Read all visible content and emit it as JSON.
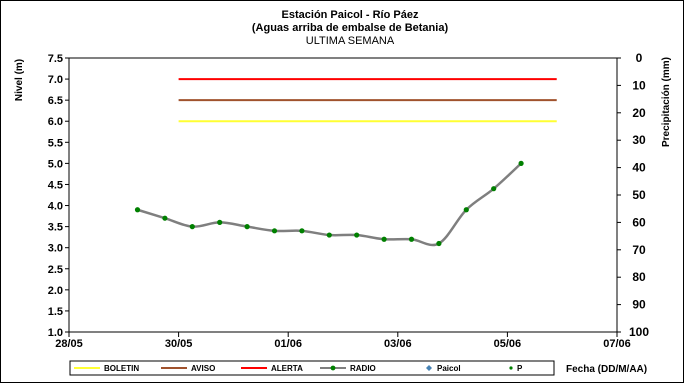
{
  "chart_data": {
    "type": "line",
    "title": "Estación Paicol  - Río Páez",
    "subtitle": "(Aguas arriba de embalse de Betania)",
    "period": "ULTIMA SEMANA",
    "ylabel": "Nivel (m)",
    "y2label": "Precipitación (mm)",
    "xlabel": "Fecha  (DD/M/AA)",
    "ylim": [
      1.0,
      7.5
    ],
    "y_ticks": [
      "1.0",
      "1.5",
      "2.0",
      "2.5",
      "3.0",
      "3.5",
      "4.0",
      "4.5",
      "5.0",
      "5.5",
      "6.0",
      "6.5",
      "7.0",
      "7.5"
    ],
    "y2lim": [
      0,
      100
    ],
    "y2_reversed": true,
    "y2_ticks": [
      "0",
      "10",
      "20",
      "30",
      "40",
      "50",
      "60",
      "70",
      "80",
      "90",
      "100"
    ],
    "x_ticks": [
      "28/05",
      "30/05",
      "01/06",
      "03/06",
      "05/06",
      "07/06"
    ],
    "grid": false,
    "legend_position": "bottom",
    "colors": {
      "boletin": "#ffff33",
      "aviso": "#a0522d",
      "alerta": "#ff0000",
      "radio_line": "#7f7f7f",
      "radio_marker": "#008000",
      "paicol": "#4682b4",
      "p": "#008000"
    },
    "series": [
      {
        "name": "BOLETIN",
        "style": "hline",
        "value": 6.0,
        "x_range": [
          "30/05",
          "05/06 + 0.9 day"
        ]
      },
      {
        "name": "AVISO",
        "style": "hline",
        "value": 6.5,
        "x_range": [
          "30/05",
          "05/06 + 0.9 day"
        ]
      },
      {
        "name": "ALERTA",
        "style": "hline",
        "value": 7.0,
        "x_range": [
          "30/05",
          "05/06 + 0.9 day"
        ]
      },
      {
        "name": "RADIO",
        "style": "line-markers",
        "x": [
          "29/05 06:00",
          "29/05 18:00",
          "30/05 06:00",
          "30/05 18:00",
          "31/05 06:00",
          "31/05 18:00",
          "01/06 06:00",
          "01/06 18:00",
          "02/06 06:00",
          "02/06 18:00",
          "03/06 06:00",
          "03/06 18:00",
          "04/06 06:00",
          "04/06 18:00",
          "05/06 06:00"
        ],
        "values": [
          3.9,
          3.7,
          3.5,
          3.6,
          3.5,
          3.4,
          3.4,
          3.3,
          3.3,
          3.2,
          3.2,
          3.1,
          3.9,
          4.4,
          5.0
        ]
      },
      {
        "name": "Paicol",
        "style": "marker",
        "values": []
      },
      {
        "name": "P",
        "style": "marker",
        "values": []
      }
    ]
  }
}
